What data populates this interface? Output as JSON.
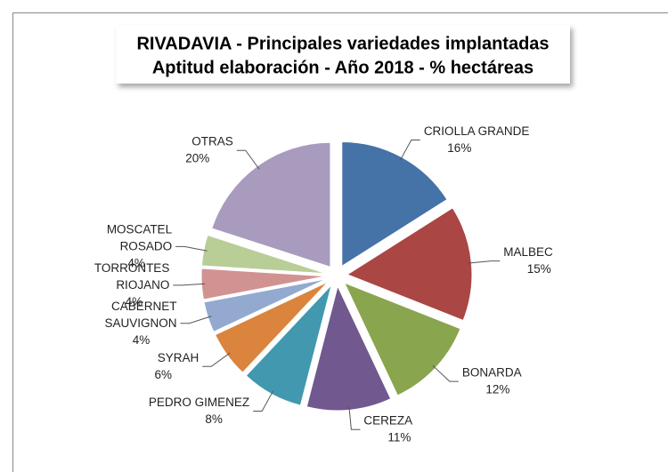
{
  "chart_data": {
    "type": "pie",
    "title": "RIVADAVIA - Principales variedades implantadas",
    "subtitle": "Aptitud elaboración  - Año 2018 - % hectáreas",
    "categories": [
      "CRIOLLA GRANDE",
      "MALBEC",
      "BONARDA",
      "CEREZA",
      "PEDRO GIMENEZ",
      "SYRAH",
      "CABERNET\nSAUVIGNON",
      "TORRONTES\nRIOJANO",
      "MOSCATEL\nROSADO",
      "OTRAS"
    ],
    "values": [
      16,
      15,
      12,
      11,
      8,
      6,
      4,
      4,
      4,
      20
    ],
    "value_labels": [
      "16%",
      "15%",
      "12%",
      "11%",
      "8%",
      "6%",
      "4%",
      "4%",
      "4%",
      "20%"
    ],
    "colors": [
      "#4572a7",
      "#aa4643",
      "#89a54e",
      "#71588f",
      "#4198af",
      "#db843d",
      "#93a9cf",
      "#d19392",
      "#b9cd96",
      "#a99bbd"
    ]
  }
}
